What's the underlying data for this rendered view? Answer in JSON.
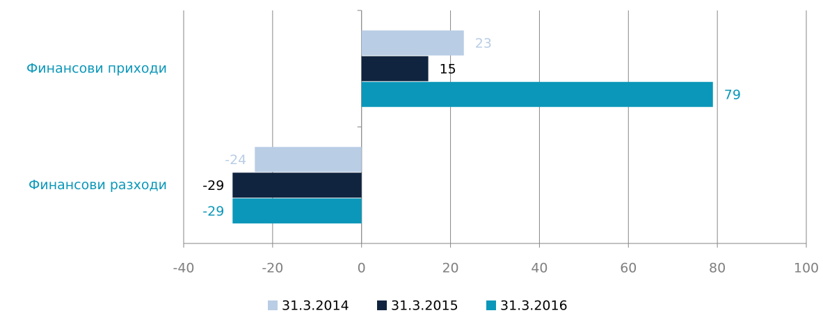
{
  "chart_data": {
    "type": "bar",
    "orientation": "horizontal",
    "categories": [
      "Финансови приходи",
      "Финансови разходи"
    ],
    "series": [
      {
        "name": "31.3.2014",
        "color": "#b9cde5",
        "label_color": "#b9cde5",
        "values": [
          23,
          -24
        ]
      },
      {
        "name": "31.3.2015",
        "color": "#10243f",
        "label_color": "#000000",
        "values": [
          15,
          -29
        ]
      },
      {
        "name": "31.3.2016",
        "color": "#0b97b9",
        "label_color": "#0b97b9",
        "values": [
          79,
          -29
        ]
      }
    ],
    "xlim": [
      -40,
      100
    ],
    "xticks": [
      -40,
      -20,
      0,
      20,
      40,
      60,
      80,
      100
    ],
    "grid": true,
    "legend": "bottom",
    "category_label_color": "#0b97b9"
  }
}
